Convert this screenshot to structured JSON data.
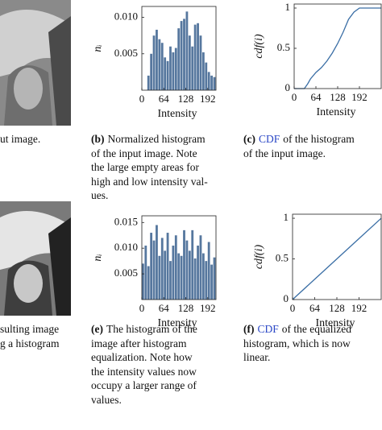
{
  "captions": {
    "a": {
      "lines": [
        "ut image."
      ]
    },
    "b": {
      "label": "(b)",
      "lines": [
        "Normalized histogram",
        "of the input image. Note",
        "the large empty areas for",
        "high and low intensity val-",
        "ues."
      ]
    },
    "c": {
      "label": "(c)",
      "link": "CDF",
      "lines": [
        "of the histogram",
        "of the input image."
      ]
    },
    "d": {
      "lines": [
        "sulting image",
        "g a histogram"
      ]
    },
    "e": {
      "label": "(e)",
      "lines": [
        "The histogram of the",
        "image after histogram",
        "equalization. Note how",
        "the intensity values now",
        "occupy a larger range of",
        "values."
      ]
    },
    "f": {
      "label": "(f)",
      "link": "CDF",
      "lines": [
        "of the equalized",
        "histogram, which is now",
        "linear."
      ]
    }
  },
  "chart_data": [
    {
      "type": "histogram",
      "ylabel": "nᵢ",
      "xlabel": "Intensity",
      "color": "#56779e",
      "bins": [
        16,
        24,
        32,
        40,
        48,
        56,
        64,
        72,
        80,
        88,
        96,
        104,
        112,
        120,
        128,
        136,
        144,
        152,
        160,
        168,
        176,
        184,
        192,
        200,
        208,
        216
      ],
      "values": [
        0.002,
        0.005,
        0.0075,
        0.0083,
        0.007,
        0.0065,
        0.0045,
        0.004,
        0.006,
        0.0052,
        0.0058,
        0.0085,
        0.0095,
        0.0098,
        0.0108,
        0.0075,
        0.006,
        0.009,
        0.0092,
        0.0075,
        0.0052,
        0.0038,
        0.0025,
        0.002,
        0.0018
      ],
      "xlim": [
        0,
        216
      ],
      "ylim": [
        0,
        0.0115
      ],
      "xticks": [
        0,
        64,
        128,
        192
      ],
      "yticks": [
        {
          "value": 0.005,
          "label": "0.005"
        },
        {
          "value": 0.01,
          "label": "0.010"
        }
      ]
    },
    {
      "type": "line",
      "ylabel": "cdf(i)",
      "xlabel": "Intensity",
      "color": "#3a6ea5",
      "x": [
        0,
        30,
        40,
        48,
        64,
        80,
        96,
        112,
        128,
        144,
        160,
        176,
        192,
        208,
        256
      ],
      "values": [
        0,
        0,
        0.06,
        0.12,
        0.2,
        0.26,
        0.34,
        0.44,
        0.56,
        0.7,
        0.86,
        0.95,
        1,
        1,
        1
      ],
      "xlim": [
        0,
        256
      ],
      "ylim": [
        0,
        1.05
      ],
      "xticks": [
        0,
        64,
        128,
        192
      ],
      "yticks": [
        0,
        0.5,
        1
      ]
    },
    {
      "type": "histogram",
      "ylabel": "nᵢ",
      "xlabel": "Intensity",
      "color": "#56779e",
      "bins": [
        0,
        8,
        16,
        24,
        32,
        40,
        48,
        56,
        64,
        72,
        80,
        88,
        96,
        104,
        112,
        120,
        128,
        136,
        144,
        152,
        160,
        168,
        176,
        184,
        192,
        200,
        208,
        216
      ],
      "values": [
        0.007,
        0.0105,
        0.0065,
        0.013,
        0.0115,
        0.0145,
        0.0085,
        0.012,
        0.0095,
        0.013,
        0.0075,
        0.0105,
        0.0125,
        0.009,
        0.0085,
        0.0135,
        0.0115,
        0.0095,
        0.0135,
        0.008,
        0.0105,
        0.0125,
        0.009,
        0.0075,
        0.0112,
        0.0068,
        0.0082
      ],
      "xlim": [
        0,
        216
      ],
      "ylim": [
        0,
        0.0163
      ],
      "xticks": [
        0,
        64,
        128,
        192
      ],
      "yticks": [
        {
          "value": 0.005,
          "label": "0.005"
        },
        {
          "value": 0.01,
          "label": "0.010"
        },
        {
          "value": 0.015,
          "label": "0.015"
        }
      ]
    },
    {
      "type": "line",
      "ylabel": "cdf(i)",
      "xlabel": "Intensity",
      "color": "#3a6ea5",
      "x": [
        0,
        64,
        128,
        192,
        256
      ],
      "values": [
        0,
        0.25,
        0.5,
        0.75,
        1
      ],
      "xlim": [
        0,
        256
      ],
      "ylim": [
        0,
        1.05
      ],
      "xticks": [
        0,
        64,
        128,
        192
      ],
      "yticks": [
        0,
        0.5,
        1
      ]
    }
  ]
}
